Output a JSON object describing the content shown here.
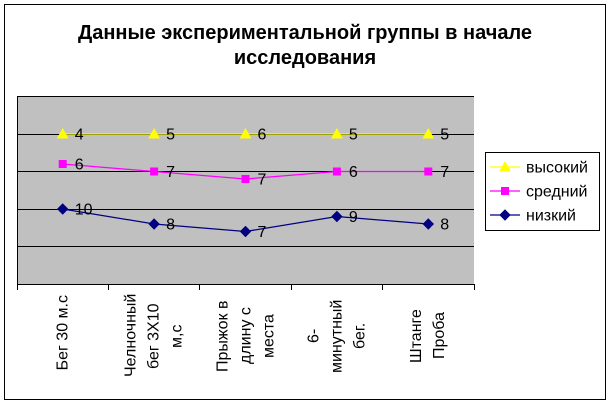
{
  "chart_data": {
    "type": "line",
    "stacked": true,
    "title": "Данные экспериментальной группы в начале исследования",
    "categories": [
      "Бег 30 м.с",
      "Челночный бег 3Х10 м,с",
      "Прыжок в длину с места",
      "6-минутный бег.",
      "Штанге Проба"
    ],
    "series": [
      {
        "name": "высокий",
        "values": [
          4,
          5,
          6,
          5,
          5
        ],
        "color": "#FFFF00",
        "marker": "triangle"
      },
      {
        "name": "средний",
        "values": [
          6,
          7,
          7,
          6,
          7
        ],
        "color": "#FF00FF",
        "marker": "square"
      },
      {
        "name": "низкий",
        "values": [
          10,
          8,
          7,
          9,
          8
        ],
        "color": "#000080",
        "marker": "diamond"
      }
    ],
    "ylim": [
      0,
      25
    ],
    "y_major_step": 5,
    "y_tick_labels": false,
    "grid": true,
    "data_labels": true,
    "legend": "right",
    "plot_background": "#C0C0C0"
  }
}
